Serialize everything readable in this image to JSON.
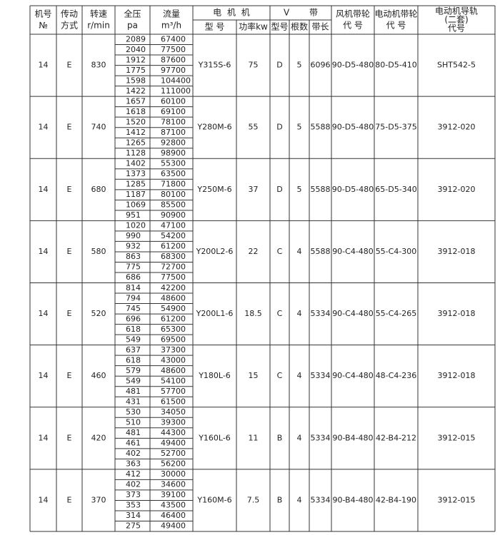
{
  "header": {
    "no": [
      "机号",
      "№"
    ],
    "drive": [
      "传动",
      "方式"
    ],
    "speed": [
      "转速",
      "r/min"
    ],
    "pressure": [
      "全压",
      "pa"
    ],
    "flow": [
      "流量",
      "m³/h"
    ],
    "motor": "电 机 机",
    "motor_model": "型 号",
    "power": "功率kw",
    "belt": "V 带",
    "belt_type": "型号",
    "belt_count": "根数",
    "belt_length": "带长",
    "fan_pulley": [
      "风机带轮",
      "代 号"
    ],
    "motor_pulley": [
      "电动机带轮",
      "代 号"
    ],
    "rail": [
      "电动机导轨",
      "(二套)",
      "代号"
    ]
  },
  "groups": [
    {
      "no": 14,
      "drive": "E",
      "speed": 830,
      "pressure": [
        2089,
        2040,
        1912,
        1775,
        1598,
        1422
      ],
      "flow": [
        67400,
        77500,
        87600,
        97700,
        104400,
        111000
      ],
      "motor_model": "Y315S-6",
      "power": 75,
      "belt_type": "D",
      "belt_count": 5,
      "belt_length": 6096,
      "fan_pulley": "90-D5-480",
      "motor_pulley": "80-D5-410",
      "rail": "SHT542-5"
    },
    {
      "no": 14,
      "drive": "E",
      "speed": 740,
      "pressure": [
        1657,
        1618,
        1520,
        1412,
        1265,
        1128
      ],
      "flow": [
        60100,
        69100,
        78100,
        87100,
        92800,
        98900
      ],
      "motor_model": "Y280M-6",
      "power": 55,
      "belt_type": "D",
      "belt_count": 5,
      "belt_length": 5588,
      "fan_pulley": "90-D5-480",
      "motor_pulley": "75-D5-375",
      "rail": "3912-020"
    },
    {
      "no": 14,
      "drive": "E",
      "speed": 680,
      "pressure": [
        1402,
        1373,
        1285,
        1187,
        1069,
        951
      ],
      "flow": [
        55300,
        63500,
        71800,
        80100,
        85500,
        90900
      ],
      "motor_model": "Y250M-6",
      "power": 37,
      "belt_type": "D",
      "belt_count": 5,
      "belt_length": 5588,
      "fan_pulley": "90-D5-480",
      "motor_pulley": "65-D5-340",
      "rail": "3912-020"
    },
    {
      "no": 14,
      "drive": "E",
      "speed": 580,
      "pressure": [
        1020,
        990,
        932,
        863,
        775,
        686
      ],
      "flow": [
        47100,
        54200,
        61200,
        68300,
        72700,
        77500
      ],
      "motor_model": "Y200L2-6",
      "power": 22,
      "belt_type": "C",
      "belt_count": 4,
      "belt_length": 5588,
      "fan_pulley": "90-C4-480",
      "motor_pulley": "55-C4-300",
      "rail": "3912-018"
    },
    {
      "no": 14,
      "drive": "E",
      "speed": 520,
      "pressure": [
        814,
        794,
        745,
        696,
        618,
        549
      ],
      "flow": [
        42200,
        48600,
        54900,
        61200,
        65300,
        69500
      ],
      "motor_model": "Y200L1-6",
      "power": 18.5,
      "belt_type": "C",
      "belt_count": 4,
      "belt_length": 5334,
      "fan_pulley": "90-C4-480",
      "motor_pulley": "55-C4-265",
      "rail": "3912-018"
    },
    {
      "no": 14,
      "drive": "E",
      "speed": 460,
      "pressure": [
        637,
        618,
        579,
        549,
        481,
        431
      ],
      "flow": [
        37300,
        43000,
        48600,
        54100,
        57700,
        61500
      ],
      "motor_model": "Y180L-6",
      "power": 15,
      "belt_type": "C",
      "belt_count": 4,
      "belt_length": 5334,
      "fan_pulley": "90-C4-480",
      "motor_pulley": "48-C4-236",
      "rail": "3912-018"
    },
    {
      "no": 14,
      "drive": "E",
      "speed": 420,
      "pressure": [
        530,
        510,
        481,
        461,
        402,
        363
      ],
      "flow": [
        34050,
        39300,
        44300,
        49400,
        52700,
        56200
      ],
      "motor_model": "Y160L-6",
      "power": 11,
      "belt_type": "B",
      "belt_count": 4,
      "belt_length": 5334,
      "fan_pulley": "90-B4-480",
      "motor_pulley": "42-B4-212",
      "rail": "3912-015"
    },
    {
      "no": 14,
      "drive": "E",
      "speed": 370,
      "pressure": [
        412,
        402,
        373,
        353,
        314,
        275
      ],
      "flow": [
        30000,
        34600,
        39100,
        43500,
        46400,
        49400
      ],
      "motor_model": "Y160M-6",
      "power": 7.5,
      "belt_type": "B",
      "belt_count": 4,
      "belt_length": 5334,
      "fan_pulley": "90-B4-480",
      "motor_pulley": "42-B4-190",
      "rail": "3912-015"
    }
  ]
}
